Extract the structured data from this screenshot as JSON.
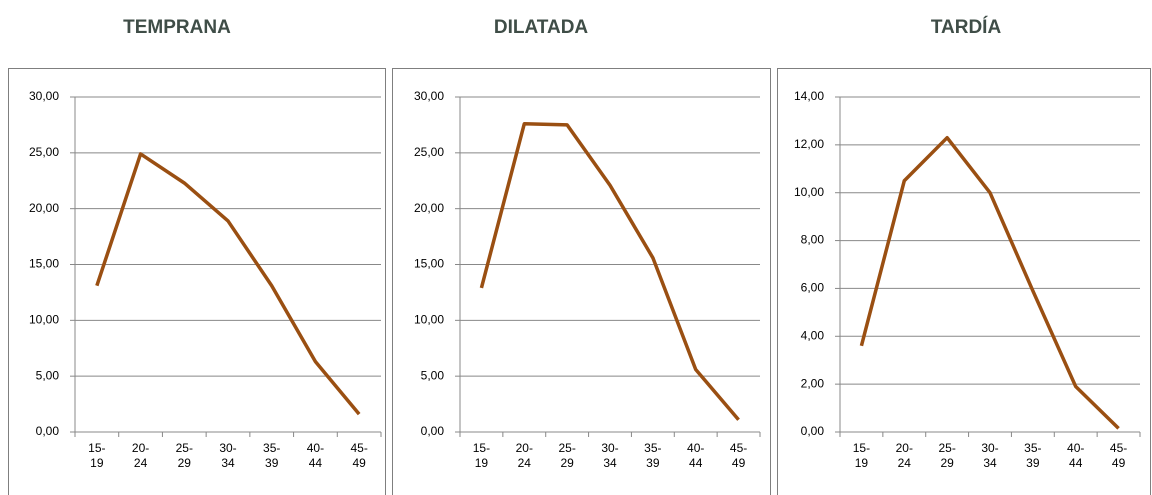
{
  "chart_data": [
    {
      "type": "line",
      "title": "TEMPRANA",
      "categories": [
        "15-19",
        "20-24",
        "25-29",
        "30-34",
        "35-39",
        "40-44",
        "45-49"
      ],
      "values": [
        13.1,
        24.9,
        22.3,
        18.9,
        13.1,
        6.3,
        1.6
      ],
      "color": "#9a4f12",
      "ylim": [
        0,
        30
      ],
      "grid": true,
      "yticks": [
        {
          "value": 0,
          "label": "0,00"
        },
        {
          "value": 5,
          "label": "5,00"
        },
        {
          "value": 10,
          "label": "10,00"
        },
        {
          "value": 15,
          "label": "15,00"
        },
        {
          "value": 20,
          "label": "20,00"
        },
        {
          "value": 25,
          "label": "25,00"
        },
        {
          "value": 30,
          "label": "30,00"
        }
      ]
    },
    {
      "type": "line",
      "title": "DILATADA",
      "categories": [
        "15-19",
        "20-24",
        "25-29",
        "30-34",
        "35-39",
        "40-44",
        "45-49"
      ],
      "values": [
        12.9,
        27.6,
        27.5,
        22.1,
        15.6,
        5.6,
        1.1
      ],
      "color": "#9a4f12",
      "ylim": [
        0,
        30
      ],
      "grid": true,
      "yticks": [
        {
          "value": 0,
          "label": "0,00"
        },
        {
          "value": 5,
          "label": "5,00"
        },
        {
          "value": 10,
          "label": "10,00"
        },
        {
          "value": 15,
          "label": "15,00"
        },
        {
          "value": 20,
          "label": "20,00"
        },
        {
          "value": 25,
          "label": "25,00"
        },
        {
          "value": 30,
          "label": "30,00"
        }
      ]
    },
    {
      "type": "line",
      "title": "TARDÍA",
      "categories": [
        "15-19",
        "20-24",
        "25-29",
        "30-34",
        "35-39",
        "40-44",
        "45-49"
      ],
      "values": [
        3.6,
        10.5,
        12.3,
        10.0,
        5.9,
        1.9,
        0.15
      ],
      "color": "#9a4f12",
      "ylim": [
        0,
        14
      ],
      "grid": true,
      "yticks": [
        {
          "value": 0,
          "label": "0,00"
        },
        {
          "value": 2,
          "label": "2,00"
        },
        {
          "value": 4,
          "label": "4,00"
        },
        {
          "value": 6,
          "label": "6,00"
        },
        {
          "value": 8,
          "label": "8,00"
        },
        {
          "value": 10,
          "label": "10,00"
        },
        {
          "value": 12,
          "label": "12,00"
        },
        {
          "value": 14,
          "label": "14,00"
        }
      ]
    }
  ]
}
